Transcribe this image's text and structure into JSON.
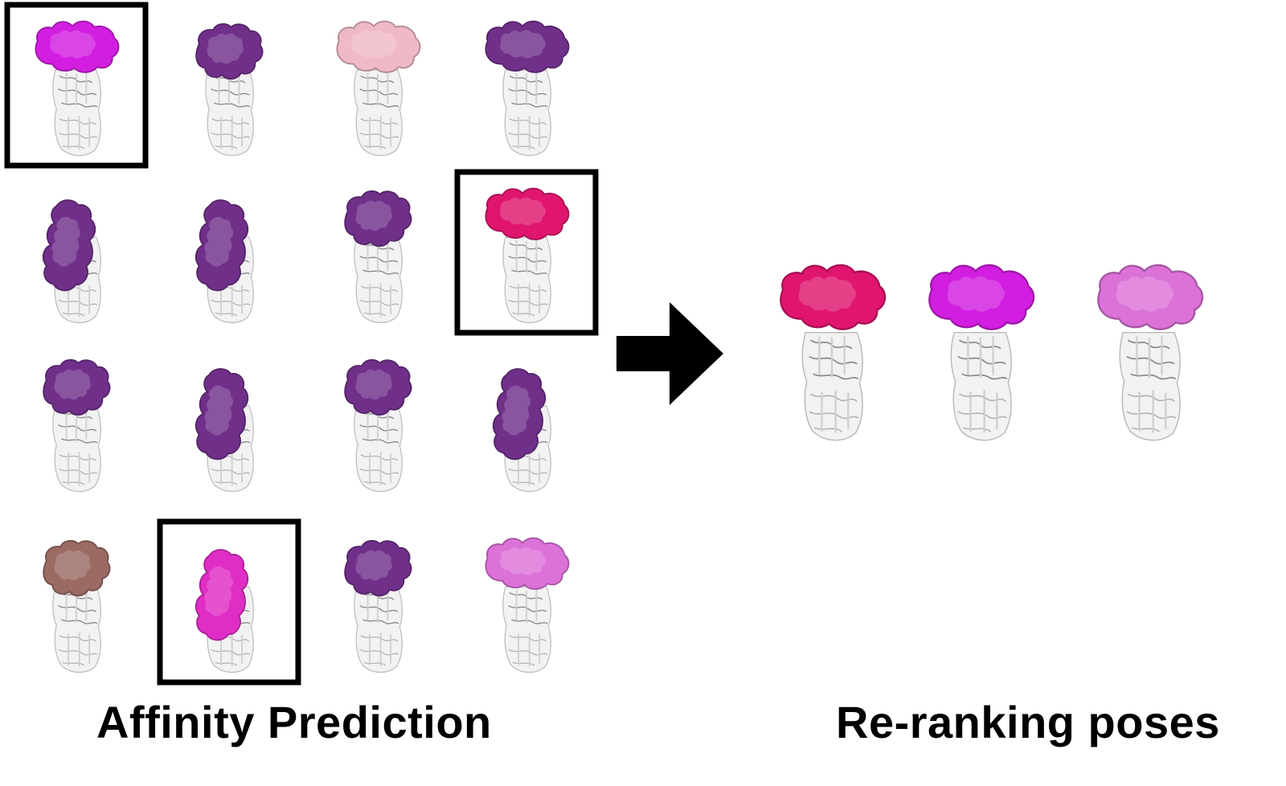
{
  "captions": {
    "left": "Affinity Prediction",
    "right": "Re-ranking poses"
  },
  "colors": {
    "dark_purple": "#70308a",
    "magenta": "#d21ee0",
    "hot_pink": "#e0156e",
    "light_pink": "#efb9c6",
    "orchid": "#dc72d8",
    "bright_pink": "#e02dc5",
    "brown": "#9a6a63",
    "receptor_gray": "#c9c9c9",
    "arrow": "#000000",
    "highlight_box": "#000000"
  },
  "grid_poses": [
    {
      "ligand": "magenta",
      "highlighted": true
    },
    {
      "ligand": "dark_purple",
      "highlighted": false
    },
    {
      "ligand": "light_pink",
      "highlighted": false
    },
    {
      "ligand": "dark_purple",
      "highlighted": false
    },
    {
      "ligand": "dark_purple",
      "highlighted": false
    },
    {
      "ligand": "dark_purple",
      "highlighted": false
    },
    {
      "ligand": "dark_purple",
      "highlighted": false
    },
    {
      "ligand": "hot_pink",
      "highlighted": true
    },
    {
      "ligand": "dark_purple",
      "highlighted": false
    },
    {
      "ligand": "dark_purple",
      "highlighted": false
    },
    {
      "ligand": "dark_purple",
      "highlighted": false
    },
    {
      "ligand": "dark_purple",
      "highlighted": false
    },
    {
      "ligand": "brown",
      "highlighted": false
    },
    {
      "ligand": "bright_pink",
      "highlighted": true
    },
    {
      "ligand": "dark_purple",
      "highlighted": false
    },
    {
      "ligand": "orchid",
      "highlighted": false
    }
  ],
  "ranked_poses": [
    {
      "ligand": "hot_pink"
    },
    {
      "ligand": "magenta"
    },
    {
      "ligand": "orchid"
    }
  ]
}
